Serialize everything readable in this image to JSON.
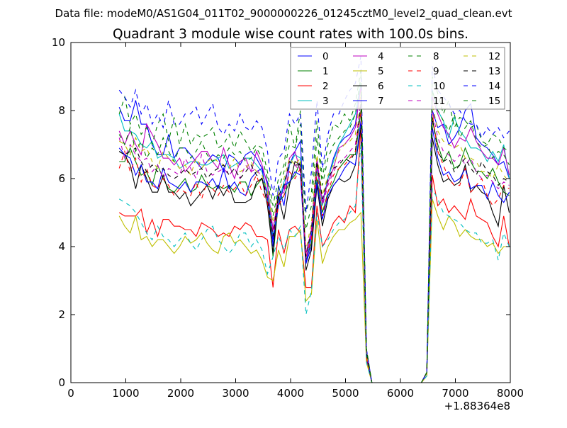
{
  "chart_data": {
    "type": "line",
    "suptitle": "Data file: modeM0/AS1G04_011T02_9000000226_01245cztM0_level2_quad_clean.evt",
    "title": "Quadrant 3 module wise count rates with 100.0s bins.",
    "xlabel": "",
    "ylabel": "",
    "x_offset_label": "+1.88364e8",
    "xlim": [
      0,
      8000
    ],
    "ylim": [
      0,
      10
    ],
    "xticks": [
      0,
      1000,
      2000,
      3000,
      4000,
      5000,
      6000,
      7000,
      8000
    ],
    "yticks": [
      0,
      2,
      4,
      6,
      8,
      10
    ],
    "grid": false,
    "legend_position": "top-right",
    "x_start": 880,
    "x_step": 100,
    "series": [
      {
        "name": "0",
        "color": "#0000ff",
        "dashed": false,
        "values": [
          8.1,
          7.7,
          7.7,
          8.3,
          7.6,
          7.6,
          7.0,
          6.7,
          6.7,
          7.3,
          6.6,
          6.9,
          6.9,
          6.7,
          6.5,
          6.3,
          6.5,
          6.7,
          6.6,
          6.2,
          6.7,
          6.6,
          6.4,
          6.7,
          6.8,
          6.6,
          6.3,
          5.9,
          4.0,
          5.8,
          5.2,
          6.4,
          6.8,
          7.1,
          3.5,
          4.0,
          6.5,
          5.3,
          6.0,
          6.6,
          7.0,
          7.2,
          7.3,
          7.6,
          8.8,
          0.9,
          0,
          0,
          0,
          0,
          0,
          0,
          0,
          0,
          0,
          0,
          0.3,
          8.0,
          7.5,
          7.6,
          7.0,
          7.2,
          7.5,
          8.0,
          8.2,
          7.2,
          7.0,
          6.9,
          6.7,
          6.4,
          6.5,
          6.0
        ]
      },
      {
        "name": "1",
        "color": "#008000",
        "dashed": false,
        "values": [
          6.5,
          6.5,
          6.9,
          6.5,
          6.1,
          6.2,
          5.8,
          6.4,
          6.0,
          5.7,
          5.6,
          5.8,
          6.0,
          5.6,
          5.7,
          6.1,
          5.8,
          5.7,
          5.8,
          5.7,
          5.8,
          5.6,
          5.9,
          5.9,
          5.5,
          5.8,
          6.0,
          5.6,
          3.7,
          5.3,
          5.5,
          5.9,
          6.1,
          6.5,
          3.6,
          4.1,
          6.0,
          5.0,
          5.6,
          5.9,
          6.3,
          6.5,
          6.7,
          6.7,
          8.0,
          0.8,
          0,
          0,
          0,
          0,
          0,
          0,
          0,
          0,
          0,
          0,
          0.3,
          7.7,
          7.0,
          6.5,
          6.8,
          6.3,
          6.4,
          6.9,
          6.5,
          6.2,
          6.2,
          6.0,
          6.3,
          5.9,
          5.6,
          5.5
        ]
      },
      {
        "name": "2",
        "color": "#ff0000",
        "dashed": false,
        "values": [
          5.0,
          4.9,
          4.9,
          4.9,
          5.1,
          4.4,
          4.8,
          4.3,
          4.8,
          4.8,
          4.6,
          4.6,
          4.5,
          4.5,
          4.3,
          4.7,
          4.6,
          4.5,
          4.3,
          4.4,
          4.3,
          4.6,
          4.5,
          4.7,
          4.6,
          4.3,
          4.3,
          4.2,
          2.8,
          4.5,
          3.8,
          4.5,
          4.6,
          4.4,
          2.8,
          2.8,
          5.2,
          4.0,
          4.3,
          4.7,
          4.9,
          4.7,
          5.2,
          5.0,
          7.5,
          0.7,
          0,
          0,
          0,
          0,
          0,
          0,
          0,
          0,
          0,
          0,
          0.2,
          6.1,
          5.2,
          5.4,
          5.0,
          5.2,
          5.0,
          4.8,
          5.4,
          4.9,
          4.8,
          4.7,
          4.3,
          4.0,
          4.9,
          4.0
        ]
      },
      {
        "name": "3",
        "color": "#00bfbf",
        "dashed": false,
        "values": [
          7.9,
          7.4,
          7.4,
          7.3,
          7.0,
          6.9,
          7.1,
          6.6,
          6.7,
          6.7,
          6.6,
          6.3,
          6.4,
          6.5,
          6.5,
          6.4,
          6.4,
          6.5,
          6.6,
          6.7,
          6.3,
          6.4,
          6.5,
          6.6,
          6.6,
          6.4,
          6.2,
          5.6,
          4.3,
          5.3,
          5.9,
          6.4,
          6.7,
          6.6,
          3.8,
          4.3,
          6.3,
          5.2,
          6.0,
          6.5,
          7.0,
          7.3,
          7.6,
          7.9,
          8.8,
          0.9,
          0,
          0,
          0,
          0,
          0,
          0,
          0,
          0,
          0,
          0,
          0.3,
          8.6,
          8.0,
          7.7,
          7.2,
          7.8,
          7.4,
          7.2,
          6.9,
          6.9,
          6.8,
          6.5,
          6.8,
          6.5,
          7.0,
          6.0
        ]
      },
      {
        "name": "4",
        "color": "#bf00bf",
        "dashed": false,
        "values": [
          7.4,
          7.0,
          7.4,
          7.0,
          6.7,
          7.6,
          7.3,
          7.0,
          6.6,
          6.6,
          6.4,
          6.6,
          6.2,
          6.4,
          6.6,
          6.8,
          6.8,
          6.5,
          6.3,
          6.9,
          6.4,
          6.0,
          6.5,
          6.6,
          6.2,
          6.8,
          6.4,
          5.8,
          4.5,
          5.5,
          5.6,
          6.6,
          6.8,
          6.2,
          3.8,
          4.5,
          6.6,
          5.3,
          5.9,
          6.3,
          6.9,
          7.0,
          7.2,
          7.5,
          8.7,
          0.9,
          0,
          0,
          0,
          0,
          0,
          0,
          0,
          0,
          0,
          0,
          0.3,
          8.4,
          7.9,
          7.5,
          7.3,
          6.9,
          7.2,
          7.1,
          7.5,
          7.1,
          6.8,
          6.6,
          6.6,
          6.4,
          6.9,
          6.1
        ]
      },
      {
        "name": "5",
        "color": "#bfbf00",
        "dashed": false,
        "values": [
          4.9,
          4.6,
          4.4,
          4.9,
          4.2,
          4.3,
          4.0,
          4.2,
          4.2,
          4.0,
          3.8,
          4.0,
          4.3,
          4.1,
          4.2,
          4.4,
          4.1,
          3.9,
          3.8,
          4.3,
          4.4,
          4.1,
          4.2,
          4.0,
          3.8,
          3.9,
          3.6,
          3.1,
          3.0,
          3.9,
          3.4,
          4.3,
          4.3,
          4.5,
          2.4,
          2.6,
          4.8,
          3.5,
          4.0,
          4.3,
          4.5,
          4.5,
          4.7,
          4.8,
          5.0,
          0.6,
          0,
          0,
          0,
          0,
          0,
          0,
          0,
          0,
          0,
          0,
          0.2,
          5.4,
          4.9,
          4.5,
          4.9,
          4.7,
          4.3,
          4.5,
          4.3,
          4.2,
          4.2,
          4.0,
          4.1,
          3.8,
          4.0,
          4.0
        ]
      },
      {
        "name": "6",
        "color": "#000000",
        "dashed": false,
        "values": [
          6.8,
          6.7,
          6.4,
          5.7,
          6.4,
          6.0,
          5.6,
          5.6,
          6.1,
          5.6,
          5.6,
          5.4,
          5.6,
          5.2,
          5.4,
          5.6,
          5.8,
          5.4,
          5.8,
          5.5,
          5.8,
          5.3,
          5.3,
          5.3,
          5.4,
          5.9,
          6.0,
          5.2,
          3.8,
          5.5,
          4.8,
          5.8,
          6.5,
          6.4,
          3.3,
          3.9,
          5.8,
          4.6,
          5.4,
          5.8,
          6.0,
          5.9,
          6.0,
          6.4,
          7.5,
          0.8,
          0,
          0,
          0,
          0,
          0,
          0,
          0,
          0,
          0,
          0,
          0.3,
          7.2,
          6.4,
          5.9,
          6.0,
          5.8,
          5.9,
          6.4,
          5.6,
          5.8,
          5.6,
          5.5,
          5.0,
          4.6,
          5.8,
          5.0
        ]
      },
      {
        "name": "7",
        "color": "#0000ff",
        "dashed": false,
        "values": [
          6.9,
          6.7,
          6.6,
          6.1,
          6.4,
          5.9,
          5.9,
          5.7,
          6.3,
          5.9,
          5.8,
          5.7,
          5.9,
          5.6,
          5.9,
          5.9,
          5.8,
          6.0,
          5.7,
          6.3,
          5.7,
          5.9,
          5.6,
          5.5,
          6.0,
          6.2,
          6.3,
          5.4,
          4.2,
          5.2,
          5.8,
          5.9,
          6.2,
          6.1,
          3.5,
          4.3,
          5.9,
          4.8,
          5.5,
          5.8,
          6.0,
          6.3,
          6.5,
          6.4,
          7.7,
          0.8,
          0,
          0,
          0,
          0,
          0,
          0,
          0,
          0,
          0,
          0,
          0.3,
          7.5,
          6.6,
          6.1,
          6.2,
          5.9,
          6.0,
          6.3,
          5.7,
          5.8,
          5.8,
          5.4,
          5.9,
          5.5,
          5.3,
          5.6
        ]
      },
      {
        "name": "8",
        "color": "#008000",
        "dashed": true,
        "values": [
          7.9,
          8.4,
          7.6,
          7.9,
          7.3,
          7.5,
          7.0,
          7.6,
          7.9,
          7.1,
          7.8,
          7.0,
          7.6,
          7.0,
          7.3,
          7.2,
          7.3,
          7.5,
          6.9,
          7.0,
          7.3,
          6.9,
          7.4,
          7.1,
          6.8,
          7.0,
          6.9,
          6.2,
          5.2,
          6.0,
          6.4,
          7.6,
          6.9,
          8.0,
          5.0,
          5.6,
          7.7,
          6.0,
          7.0,
          7.6,
          7.5,
          7.9,
          7.7,
          8.2,
          9.2,
          1.0,
          0,
          0,
          0,
          0,
          0,
          0,
          0,
          0,
          0,
          0,
          0.3,
          9.0,
          8.5,
          7.9,
          8.3,
          7.5,
          7.8,
          7.7,
          7.5,
          7.6,
          7.1,
          7.0,
          7.3,
          7.2,
          6.9,
          6.8
        ]
      },
      {
        "name": "9",
        "color": "#ff0000",
        "dashed": true,
        "values": [
          6.3,
          6.8,
          6.2,
          6.6,
          5.9,
          6.3,
          5.8,
          5.7,
          6.0,
          5.8,
          5.5,
          5.7,
          5.6,
          5.5,
          5.9,
          5.4,
          5.9,
          5.7,
          5.5,
          5.8,
          5.6,
          5.7,
          5.9,
          5.5,
          5.8,
          6.1,
          5.6,
          5.3,
          4.3,
          5.2,
          5.5,
          6.2,
          6.0,
          6.3,
          3.7,
          4.2,
          6.2,
          4.9,
          5.6,
          6.1,
          6.3,
          6.4,
          6.6,
          6.8,
          8.0,
          0.8,
          0,
          0,
          0,
          0,
          0,
          0,
          0,
          0,
          0,
          0,
          0.3,
          7.9,
          6.8,
          6.4,
          6.0,
          5.8,
          5.8,
          6.3,
          5.6,
          5.8,
          6.0,
          5.5,
          5.2,
          5.4,
          5.8,
          5.7
        ]
      },
      {
        "name": "10",
        "color": "#00bfbf",
        "dashed": true,
        "values": [
          5.4,
          5.3,
          5.2,
          5.0,
          4.7,
          4.4,
          4.2,
          4.6,
          4.3,
          4.2,
          4.0,
          4.2,
          4.4,
          4.1,
          3.9,
          4.2,
          4.5,
          4.6,
          4.2,
          4.0,
          3.8,
          4.0,
          4.4,
          4.4,
          4.0,
          4.2,
          3.9,
          3.2,
          3.7,
          4.3,
          3.9,
          4.5,
          4.3,
          4.6,
          2.0,
          2.7,
          5.0,
          4.0,
          4.2,
          4.5,
          4.7,
          4.8,
          5.0,
          5.2,
          7.0,
          0.6,
          0,
          0,
          0,
          0,
          0,
          0,
          0,
          0,
          0,
          0,
          0.2,
          5.7,
          5.4,
          5.0,
          4.9,
          4.8,
          4.7,
          4.5,
          4.4,
          4.4,
          4.1,
          4.1,
          4.2,
          3.6,
          4.4,
          4.0
        ]
      },
      {
        "name": "11",
        "color": "#bf00bf",
        "dashed": true,
        "values": [
          7.2,
          6.6,
          7.0,
          6.7,
          6.5,
          6.6,
          6.2,
          6.4,
          6.0,
          6.3,
          6.2,
          6.1,
          6.6,
          6.3,
          6.0,
          6.7,
          6.2,
          6.1,
          6.2,
          6.3,
          6.1,
          6.3,
          6.0,
          6.4,
          6.2,
          6.3,
          6.0,
          5.5,
          4.4,
          5.4,
          5.7,
          6.5,
          6.4,
          6.2,
          3.6,
          4.4,
          6.4,
          5.2,
          5.8,
          6.2,
          6.5,
          6.6,
          6.8,
          7.0,
          8.3,
          0.9,
          0,
          0,
          0,
          0,
          0,
          0,
          0,
          0,
          0,
          0,
          0.3,
          8.0,
          7.2,
          6.8,
          6.7,
          6.5,
          6.7,
          6.4,
          6.6,
          6.2,
          6.0,
          6.1,
          5.9,
          5.7,
          5.9,
          5.8
        ]
      },
      {
        "name": "12",
        "color": "#bfbf00",
        "dashed": true,
        "values": [
          7.1,
          7.0,
          6.7,
          7.2,
          6.8,
          6.9,
          6.5,
          6.3,
          6.8,
          6.6,
          6.5,
          6.3,
          6.4,
          6.1,
          6.6,
          6.3,
          6.5,
          6.6,
          6.5,
          6.4,
          6.3,
          6.6,
          6.2,
          6.3,
          6.5,
          6.2,
          6.1,
          5.6,
          4.7,
          5.6,
          6.0,
          6.6,
          6.4,
          6.6,
          3.9,
          4.7,
          6.7,
          5.5,
          6.1,
          6.4,
          6.8,
          7.0,
          7.1,
          7.3,
          8.5,
          0.9,
          0,
          0,
          0,
          0,
          0,
          0,
          0,
          0,
          0,
          0,
          0.3,
          8.2,
          7.4,
          7.1,
          7.0,
          6.9,
          7.0,
          6.6,
          6.6,
          6.5,
          6.2,
          6.2,
          6.0,
          6.4,
          6.1,
          5.9
        ]
      },
      {
        "name": "13",
        "color": "#000000",
        "dashed": true,
        "values": [
          6.8,
          6.7,
          6.8,
          6.9,
          6.5,
          6.2,
          6.4,
          6.2,
          6.3,
          6.1,
          6.0,
          6.1,
          6.3,
          6.1,
          6.2,
          6.3,
          6.0,
          6.2,
          6.3,
          6.4,
          6.1,
          6.3,
          6.0,
          6.2,
          6.4,
          6.1,
          6.0,
          5.4,
          4.3,
          5.5,
          5.8,
          6.5,
          6.4,
          6.4,
          3.7,
          4.5,
          6.5,
          5.4,
          6.0,
          6.3,
          6.4,
          6.6,
          6.5,
          6.8,
          8.2,
          0.9,
          0,
          0,
          0,
          0,
          0,
          0,
          0,
          0,
          0,
          0,
          0.3,
          7.8,
          6.8,
          6.5,
          6.6,
          6.2,
          6.4,
          6.6,
          6.3,
          6.1,
          6.5,
          6.2,
          6.1,
          5.8,
          6.0,
          5.9
        ]
      },
      {
        "name": "14",
        "color": "#0000ff",
        "dashed": true,
        "values": [
          8.6,
          8.4,
          8.1,
          8.6,
          7.9,
          8.2,
          7.6,
          7.9,
          7.5,
          8.3,
          7.6,
          7.6,
          7.9,
          7.9,
          8.1,
          7.6,
          7.9,
          8.2,
          7.5,
          7.3,
          7.6,
          7.4,
          7.9,
          7.5,
          7.4,
          7.7,
          7.5,
          6.8,
          5.5,
          6.6,
          6.8,
          7.9,
          7.6,
          7.9,
          5.0,
          6.2,
          8.3,
          6.3,
          7.3,
          7.9,
          7.9,
          8.3,
          8.6,
          8.8,
          9.6,
          1.0,
          0,
          0,
          0,
          0,
          0,
          0,
          0,
          0,
          0,
          0,
          0.3,
          9.3,
          8.6,
          8.4,
          8.2,
          7.9,
          8.0,
          7.7,
          7.6,
          7.6,
          7.2,
          7.5,
          7.3,
          7.5,
          7.2,
          7.4
        ]
      },
      {
        "name": "15",
        "color": "#008000",
        "dashed": true,
        "values": [
          7.3,
          7.0,
          7.5,
          6.8,
          7.1,
          6.6,
          6.9,
          6.7,
          7.2,
          6.8,
          6.5,
          6.9,
          6.9,
          6.6,
          6.8,
          7.1,
          6.7,
          6.5,
          6.7,
          6.6,
          6.9,
          6.7,
          6.8,
          6.5,
          6.6,
          6.9,
          6.6,
          6.0,
          4.9,
          5.7,
          6.2,
          7.0,
          6.9,
          7.6,
          4.5,
          5.2,
          7.2,
          5.8,
          6.6,
          7.0,
          7.2,
          7.4,
          7.5,
          7.9,
          9.0,
          1.0,
          0,
          0,
          0,
          0,
          0,
          0,
          0,
          0,
          0,
          0,
          0.3,
          8.6,
          8.0,
          7.7,
          7.4,
          7.9,
          7.2,
          7.5,
          7.7,
          7.1,
          6.9,
          7.0,
          6.6,
          6.8,
          6.7,
          6.4
        ]
      }
    ]
  }
}
